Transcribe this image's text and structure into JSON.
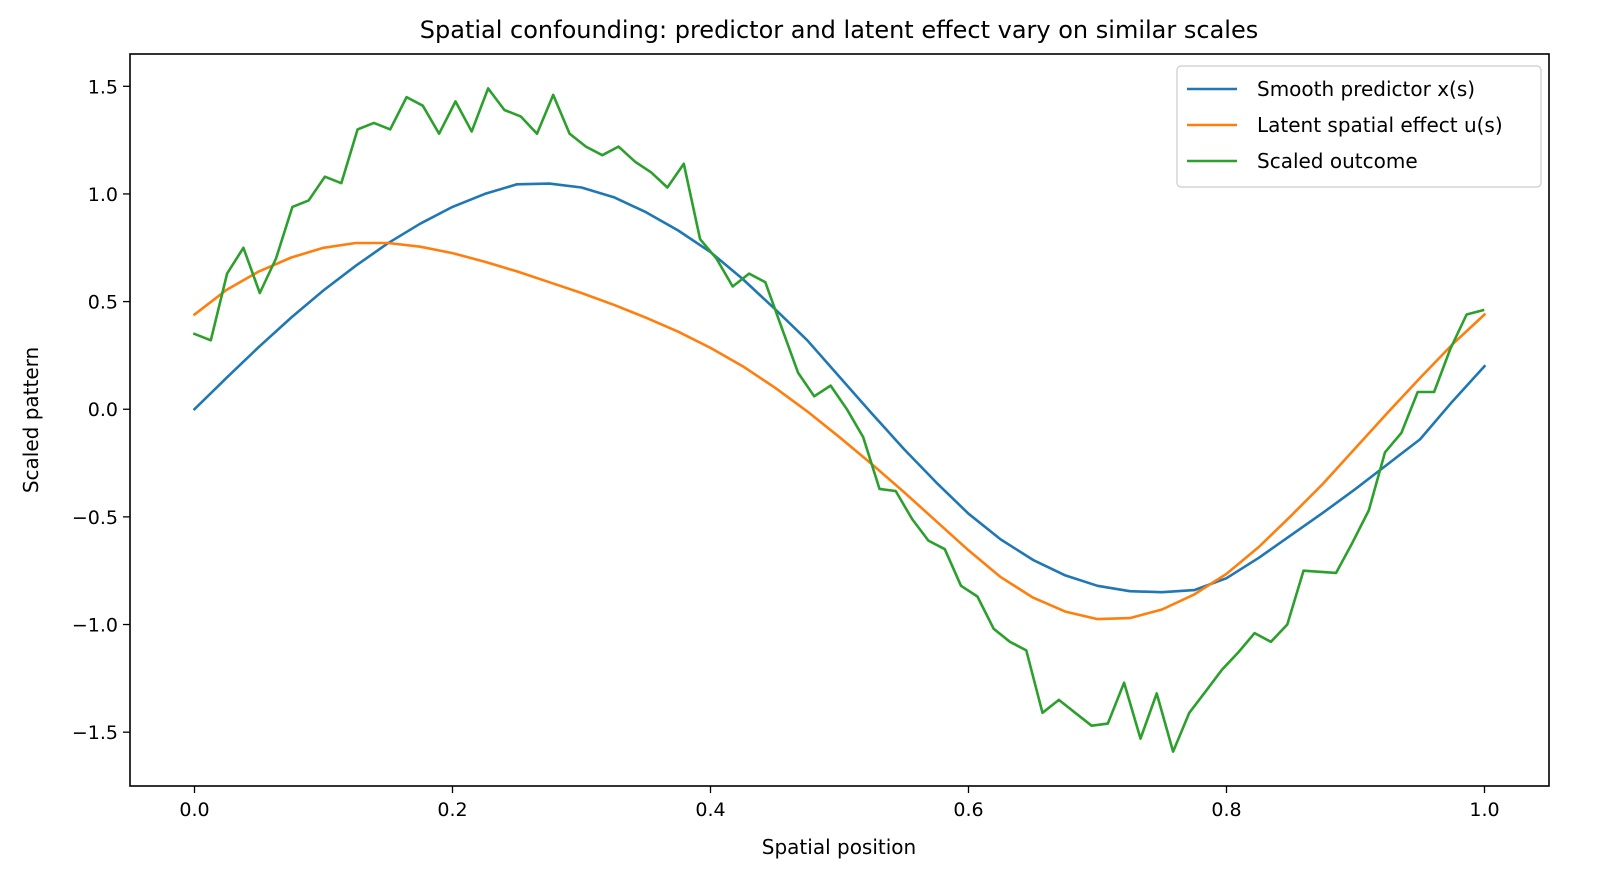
{
  "chart_data": {
    "type": "line",
    "title": "Spatial confounding: predictor and latent effect vary on similar scales",
    "xlabel": "Spatial position",
    "ylabel": "Scaled pattern",
    "xlim": [
      -0.05,
      1.05
    ],
    "ylim": [
      -1.75,
      1.65
    ],
    "xticks": [
      0.0,
      0.2,
      0.4,
      0.6,
      0.8,
      1.0
    ],
    "xtick_labels": [
      "0.0",
      "0.2",
      "0.4",
      "0.6",
      "0.8",
      "1.0"
    ],
    "yticks": [
      -1.5,
      -1.0,
      -0.5,
      0.0,
      0.5,
      1.0,
      1.5
    ],
    "ytick_labels": [
      "−1.5",
      "−1.0",
      "−0.5",
      "0.0",
      "0.5",
      "1.0",
      "1.5"
    ],
    "grid": false,
    "legend_position": "top-right",
    "series": [
      {
        "name": "Smooth predictor x(s)",
        "color": "#1f77b4",
        "x": [
          0.0,
          0.025,
          0.05,
          0.075,
          0.1,
          0.125,
          0.15,
          0.175,
          0.2,
          0.225,
          0.25,
          0.275,
          0.3,
          0.325,
          0.35,
          0.375,
          0.4,
          0.425,
          0.45,
          0.475,
          0.5,
          0.525,
          0.55,
          0.575,
          0.6,
          0.625,
          0.65,
          0.675,
          0.7,
          0.725,
          0.75,
          0.775,
          0.8,
          0.825,
          0.85,
          0.875,
          0.9,
          0.925,
          0.95,
          0.975,
          1.0
        ],
        "y": [
          0.0,
          0.147,
          0.29,
          0.426,
          0.552,
          0.666,
          0.771,
          0.862,
          0.94,
          1.0,
          1.045,
          1.048,
          1.03,
          0.985,
          0.915,
          0.83,
          0.73,
          0.605,
          0.465,
          0.32,
          0.15,
          -0.02,
          -0.185,
          -0.34,
          -0.485,
          -0.605,
          -0.7,
          -0.772,
          -0.82,
          -0.845,
          -0.85,
          -0.84,
          -0.785,
          -0.69,
          -0.585,
          -0.48,
          -0.37,
          -0.255,
          -0.14,
          0.035,
          0.2
        ]
      },
      {
        "name": "Latent spatial effect u(s)",
        "color": "#ff7f0e",
        "x": [
          0.0,
          0.025,
          0.05,
          0.075,
          0.1,
          0.125,
          0.15,
          0.175,
          0.2,
          0.225,
          0.25,
          0.275,
          0.3,
          0.325,
          0.35,
          0.375,
          0.4,
          0.425,
          0.45,
          0.475,
          0.5,
          0.525,
          0.55,
          0.575,
          0.6,
          0.625,
          0.65,
          0.675,
          0.7,
          0.725,
          0.75,
          0.775,
          0.8,
          0.825,
          0.85,
          0.875,
          0.9,
          0.925,
          0.95,
          0.975,
          1.0
        ],
        "y": [
          0.44,
          0.555,
          0.64,
          0.705,
          0.75,
          0.772,
          0.772,
          0.755,
          0.725,
          0.685,
          0.64,
          0.59,
          0.54,
          0.485,
          0.425,
          0.36,
          0.285,
          0.2,
          0.1,
          -0.01,
          -0.13,
          -0.255,
          -0.385,
          -0.52,
          -0.655,
          -0.78,
          -0.875,
          -0.94,
          -0.975,
          -0.97,
          -0.93,
          -0.86,
          -0.765,
          -0.64,
          -0.495,
          -0.345,
          -0.18,
          -0.015,
          0.145,
          0.3,
          0.44
        ]
      },
      {
        "name": "Scaled outcome",
        "color": "#2ca02c",
        "x": [
          0.0,
          0.0126,
          0.0253,
          0.0379,
          0.0506,
          0.0632,
          0.0759,
          0.0885,
          0.1011,
          0.1138,
          0.1264,
          0.1391,
          0.1517,
          0.1644,
          0.177,
          0.1896,
          0.2023,
          0.2149,
          0.2276,
          0.2402,
          0.2529,
          0.2655,
          0.2781,
          0.2908,
          0.3034,
          0.3161,
          0.3287,
          0.3414,
          0.354,
          0.3666,
          0.3793,
          0.3919,
          0.4046,
          0.4172,
          0.4299,
          0.4425,
          0.4551,
          0.4678,
          0.4804,
          0.4931,
          0.5057,
          0.5184,
          0.531,
          0.5436,
          0.5563,
          0.5689,
          0.5816,
          0.5942,
          0.6069,
          0.6195,
          0.6321,
          0.6448,
          0.6574,
          0.6701,
          0.6827,
          0.6954,
          0.708,
          0.7206,
          0.7333,
          0.7459,
          0.7586,
          0.7712,
          0.7839,
          0.7965,
          0.8091,
          0.8218,
          0.8344,
          0.8471,
          0.8597,
          0.8724,
          0.885,
          0.8976,
          0.9103,
          0.9229,
          0.9356,
          0.9482,
          0.9609,
          0.9735,
          0.9861,
          0.9988
        ],
        "y": [
          0.35,
          0.32,
          0.63,
          0.75,
          0.54,
          0.7,
          0.94,
          0.97,
          1.08,
          1.05,
          1.3,
          1.33,
          1.3,
          1.45,
          1.41,
          1.28,
          1.43,
          1.29,
          1.49,
          1.39,
          1.36,
          1.28,
          1.46,
          1.28,
          1.22,
          1.18,
          1.22,
          1.15,
          1.1,
          1.03,
          1.14,
          0.79,
          0.7,
          0.57,
          0.63,
          0.59,
          0.38,
          0.17,
          0.06,
          0.11,
          0.0,
          -0.13,
          -0.37,
          -0.38,
          -0.51,
          -0.61,
          -0.65,
          -0.82,
          -0.87,
          -1.02,
          -1.08,
          -1.12,
          -1.41,
          -1.35,
          -1.41,
          -1.47,
          -1.46,
          -1.27,
          -1.53,
          -1.32,
          -1.59,
          -1.41,
          -1.31,
          -1.21,
          -1.13,
          -1.04,
          -1.08,
          -1.0,
          -0.75,
          -0.755,
          -0.76,
          -0.62,
          -0.47,
          -0.2,
          -0.11,
          0.08,
          0.08,
          0.28,
          0.44,
          0.46
        ]
      }
    ]
  }
}
